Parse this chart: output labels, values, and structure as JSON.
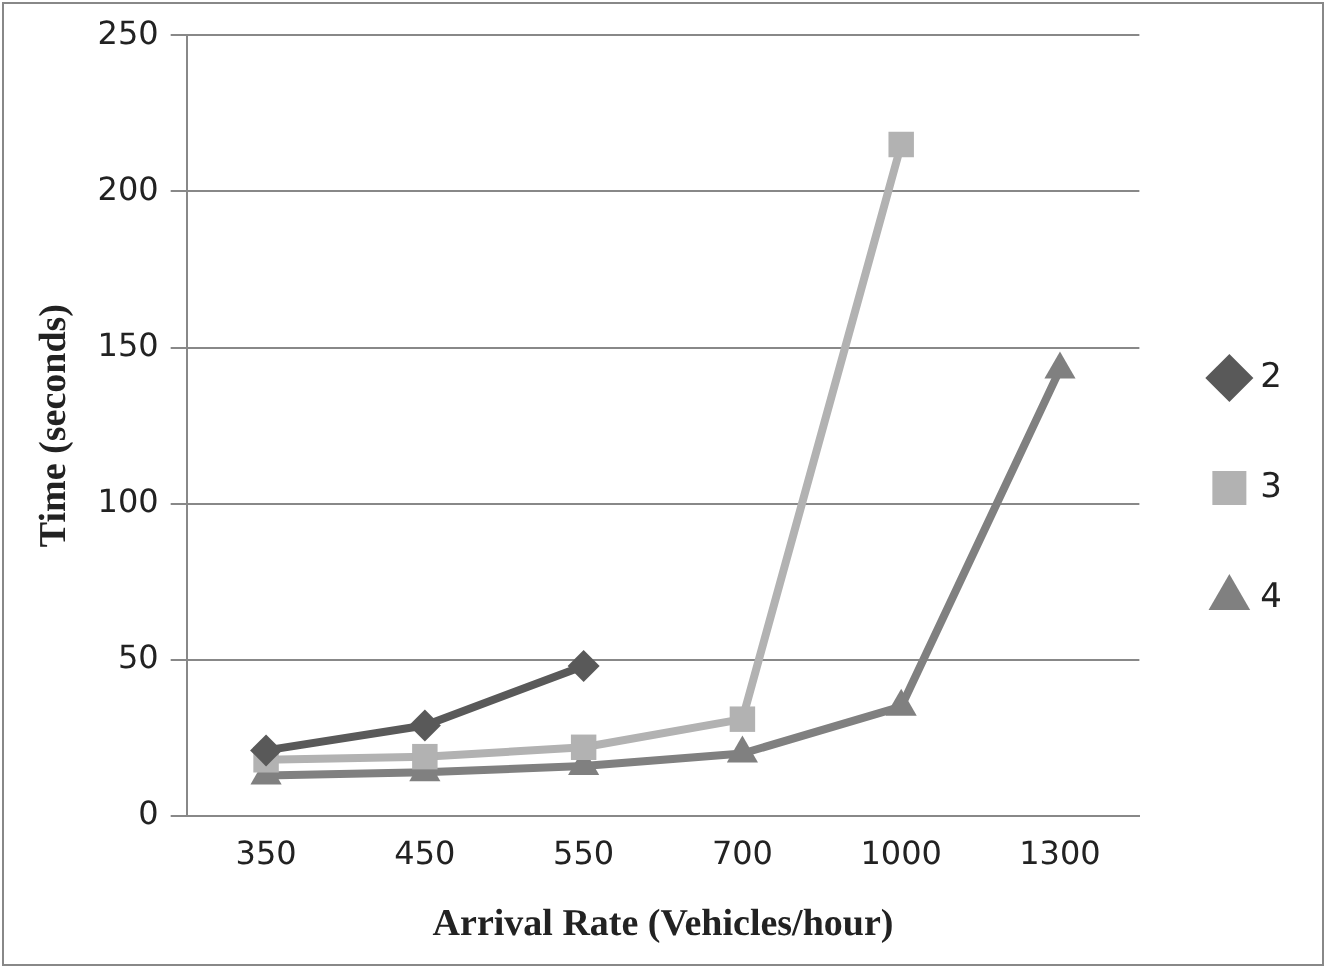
{
  "chart_data": {
    "type": "line",
    "xlabel": "Arrival Rate (Vehicles/hour)",
    "ylabel": "Time (seconds)",
    "categories": [
      "350",
      "450",
      "550",
      "700",
      "1000",
      "1300"
    ],
    "series": [
      {
        "name": "2",
        "color": "#595959",
        "marker": "diamond",
        "values": [
          21,
          29,
          48,
          null,
          null,
          null
        ]
      },
      {
        "name": "3",
        "color": "#b2b2b2",
        "marker": "square",
        "values": [
          18,
          19,
          22,
          31,
          215,
          null
        ]
      },
      {
        "name": "4",
        "color": "#808080",
        "marker": "triangle",
        "values": [
          13,
          14,
          16,
          20,
          35,
          143
        ]
      }
    ],
    "ylim": [
      0,
      250
    ],
    "yticks": [
      0,
      50,
      100,
      150,
      200,
      250
    ],
    "grid": "y",
    "legend": "right"
  }
}
